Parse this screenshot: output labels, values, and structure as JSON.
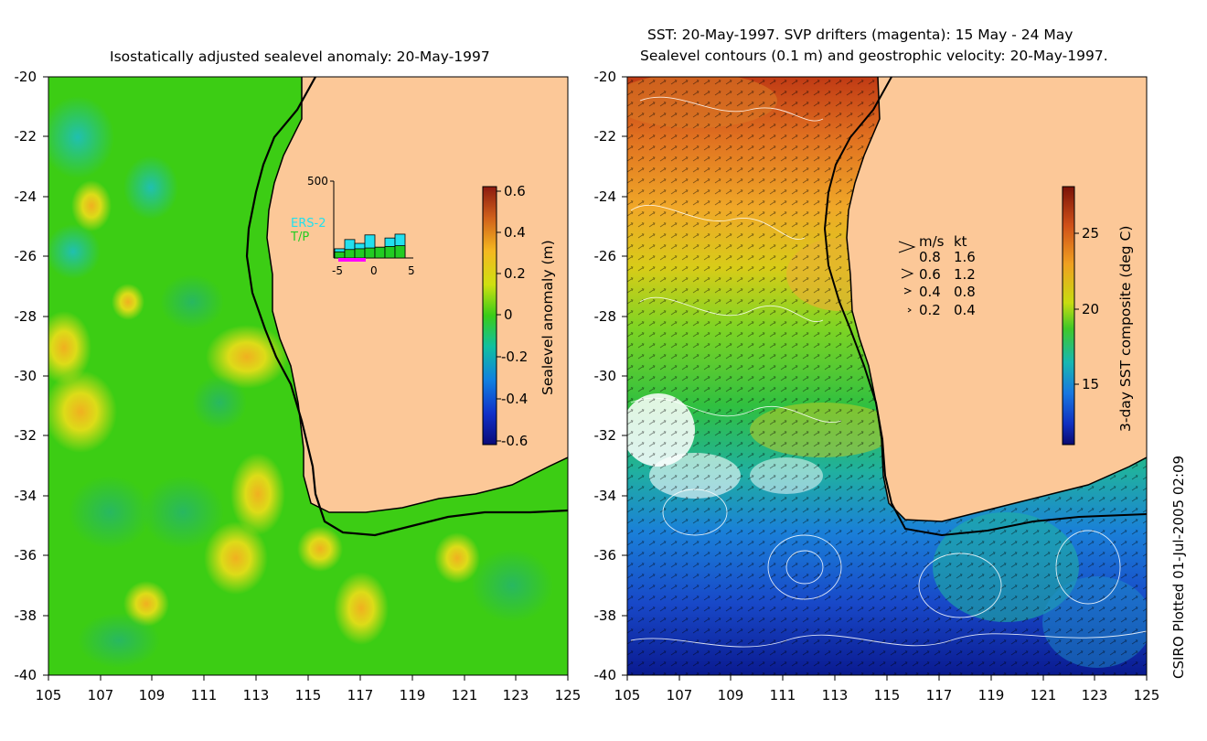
{
  "left_panel": {
    "title": "Isostatically adjusted sealevel anomaly: 20-May-1997",
    "y_ticks": [
      "-20",
      "-22",
      "-24",
      "-26",
      "-28",
      "-30",
      "-32",
      "-34",
      "-36",
      "-38",
      "-40"
    ],
    "x_ticks": [
      "105",
      "107",
      "109",
      "111",
      "113",
      "115",
      "117",
      "119",
      "121",
      "123",
      "125"
    ],
    "colorbar": {
      "label": "Sealevel anomaly (m)",
      "ticks": [
        "0.6",
        "0.4",
        "0.2",
        "0",
        "-0.2",
        "-0.4",
        "-0.6"
      ]
    },
    "inset": {
      "ymax_label": "500",
      "legend": [
        "ERS-2",
        "T/P"
      ],
      "x_ticks": [
        "-5",
        "0",
        "5"
      ],
      "ers2_values": [
        60,
        120,
        95,
        150,
        70,
        130,
        155
      ],
      "tp_values": [
        40,
        55,
        60,
        65,
        70,
        75,
        80
      ],
      "ymax": 500,
      "colors": {
        "ers2": "#22e0ee",
        "tp": "#22cc22",
        "window": "#ff00ff"
      }
    }
  },
  "right_panel": {
    "title_line1": "SST: 20-May-1997. SVP drifters (magenta): 15 May - 24 May",
    "title_line2": "Sealevel contours (0.1 m) and geostrophic velocity: 20-May-1997.",
    "y_ticks": [
      "-20",
      "-22",
      "-24",
      "-26",
      "-28",
      "-30",
      "-32",
      "-34",
      "-36",
      "-38",
      "-40"
    ],
    "x_ticks": [
      "105",
      "107",
      "109",
      "111",
      "113",
      "115",
      "117",
      "119",
      "121",
      "123",
      "125"
    ],
    "colorbar": {
      "label": "3-day SST composite (deg C)",
      "ticks": [
        "25",
        "20",
        "15"
      ]
    },
    "velocity_legend": {
      "header_ms": "m/s",
      "header_kt": "kt",
      "rows": [
        {
          "ms": "0.8",
          "kt": "1.6"
        },
        {
          "ms": "0.6",
          "kt": "1.2"
        },
        {
          "ms": "0.4",
          "kt": "0.8"
        },
        {
          "ms": "0.2",
          "kt": "0.4"
        }
      ]
    }
  },
  "credit": "CSIRO Plotted 01-Jul-2005 02:09",
  "colors": {
    "land": "#fcc898",
    "ocean_green": "#3ccd14"
  }
}
